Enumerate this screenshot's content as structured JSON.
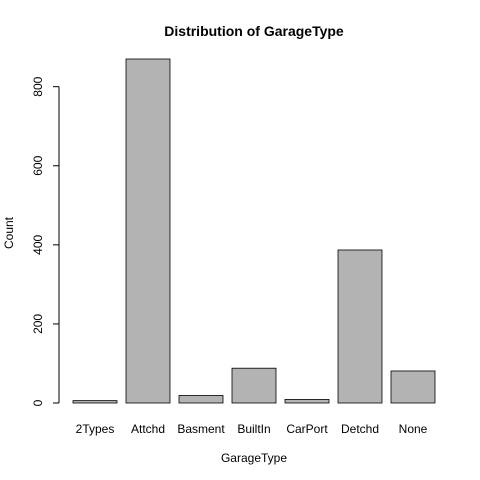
{
  "chart_data": {
    "type": "bar",
    "title": "Distribution of GarageType",
    "xlabel": "GarageType",
    "ylabel": "Count",
    "categories": [
      "2Types",
      "Attchd",
      "Basment",
      "BuiltIn",
      "CarPort",
      "Detchd",
      "None"
    ],
    "values": [
      6,
      870,
      19,
      88,
      9,
      387,
      81
    ],
    "ylim": [
      0,
      870
    ],
    "yticks": [
      0,
      200,
      400,
      600,
      800
    ],
    "bar_color": "#b3b3b3",
    "grid": false
  }
}
